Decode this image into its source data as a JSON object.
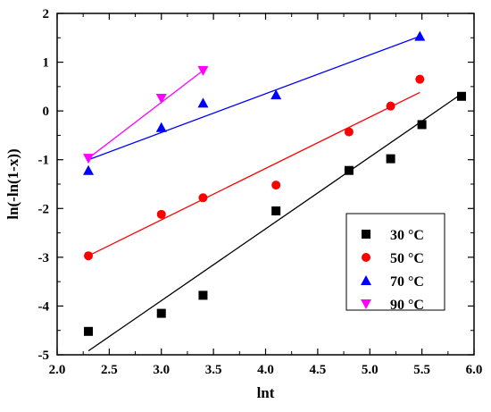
{
  "chart_data": {
    "type": "scatter",
    "xlabel": "lnt",
    "ylabel": "ln(-ln(1-x))",
    "xlim": [
      2.0,
      6.0
    ],
    "ylim": [
      -5,
      2
    ],
    "xticks": [
      "2.0",
      "2.5",
      "3.0",
      "3.5",
      "4.0",
      "4.5",
      "5.0",
      "5.5",
      "6.0"
    ],
    "yticks": [
      "-5",
      "-4",
      "-3",
      "-2",
      "-1",
      "0",
      "1",
      "2"
    ],
    "legend_position": "lower-right",
    "series": [
      {
        "name": "30 °C",
        "color": "#000000",
        "marker": "square",
        "x": [
          2.3,
          3.0,
          3.4,
          4.1,
          4.8,
          5.2,
          5.5,
          5.88
        ],
        "y": [
          -4.52,
          -4.15,
          -3.78,
          -2.05,
          -1.22,
          -0.98,
          -0.28,
          0.3
        ],
        "fit": {
          "x": [
            2.3,
            5.9
          ],
          "y": [
            -4.92,
            0.38
          ]
        }
      },
      {
        "name": "50 °C",
        "color": "#ff0000",
        "marker": "circle",
        "x": [
          2.3,
          3.0,
          3.4,
          4.1,
          4.8,
          5.2,
          5.48
        ],
        "y": [
          -2.97,
          -2.12,
          -1.78,
          -1.52,
          -0.43,
          0.1,
          0.65
        ],
        "fit": {
          "x": [
            2.3,
            5.48
          ],
          "y": [
            -2.97,
            0.38
          ]
        }
      },
      {
        "name": "70 °C",
        "color": "#0000ff",
        "marker": "triangle-up",
        "x": [
          2.3,
          3.0,
          3.4,
          4.1,
          5.48
        ],
        "y": [
          -1.22,
          -0.34,
          0.16,
          0.33,
          1.53
        ],
        "fit": {
          "x": [
            2.3,
            5.48
          ],
          "y": [
            -1.0,
            1.53
          ]
        }
      },
      {
        "name": "90 °C",
        "color": "#ff00ff",
        "marker": "triangle-down",
        "x": [
          2.3,
          3.0,
          3.4
        ],
        "y": [
          -0.97,
          0.26,
          0.83
        ],
        "fit": {
          "x": [
            2.3,
            3.4
          ],
          "y": [
            -0.97,
            0.83
          ]
        }
      }
    ]
  }
}
